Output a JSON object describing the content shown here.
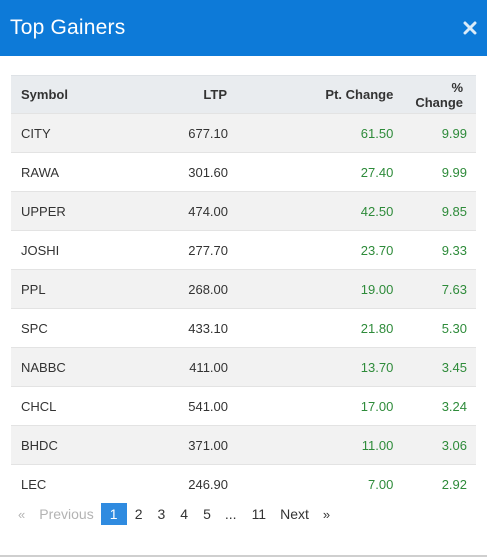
{
  "modal": {
    "title": "Top Gainers",
    "close_icon": "close-icon"
  },
  "table": {
    "headers": {
      "symbol": "Symbol",
      "ltp": "LTP",
      "pt_change": "Pt. Change",
      "pct_change": "% Change"
    },
    "rows": [
      {
        "symbol": "CITY",
        "ltp": "677.10",
        "pt_change": "61.50",
        "pct_change": "9.99"
      },
      {
        "symbol": "RAWA",
        "ltp": "301.60",
        "pt_change": "27.40",
        "pct_change": "9.99"
      },
      {
        "symbol": "UPPER",
        "ltp": "474.00",
        "pt_change": "42.50",
        "pct_change": "9.85"
      },
      {
        "symbol": "JOSHI",
        "ltp": "277.70",
        "pt_change": "23.70",
        "pct_change": "9.33"
      },
      {
        "symbol": "PPL",
        "ltp": "268.00",
        "pt_change": "19.00",
        "pct_change": "7.63"
      },
      {
        "symbol": "SPC",
        "ltp": "433.10",
        "pt_change": "21.80",
        "pct_change": "5.30"
      },
      {
        "symbol": "NABBC",
        "ltp": "411.00",
        "pt_change": "13.70",
        "pct_change": "3.45"
      },
      {
        "symbol": "CHCL",
        "ltp": "541.00",
        "pt_change": "17.00",
        "pct_change": "3.24"
      },
      {
        "symbol": "BHDC",
        "ltp": "371.00",
        "pt_change": "11.00",
        "pct_change": "3.06"
      },
      {
        "symbol": "LEC",
        "ltp": "246.90",
        "pt_change": "7.00",
        "pct_change": "2.92"
      }
    ]
  },
  "pagination": {
    "first_arrow": "«",
    "previous": "Previous",
    "pages": [
      "1",
      "2",
      "3",
      "4",
      "5",
      "...",
      "11"
    ],
    "active_page": "1",
    "next": "Next",
    "last_arrow": "»"
  },
  "colors": {
    "header_bg": "#0d7ad8",
    "positive": "#2e8b3a",
    "active_page_bg": "#2f8be0"
  }
}
